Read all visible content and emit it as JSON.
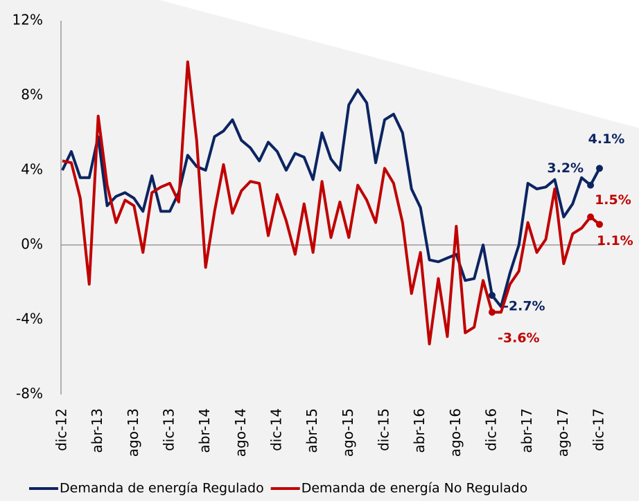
{
  "chart_data": {
    "type": "line",
    "categories": [
      "dic-12",
      null,
      null,
      null,
      "abr-13",
      null,
      null,
      null,
      "ago-13",
      null,
      null,
      null,
      "dic-13",
      null,
      null,
      null,
      "abr-14",
      null,
      null,
      null,
      "ago-14",
      null,
      null,
      null,
      "dic-14",
      null,
      null,
      null,
      "abr-15",
      null,
      null,
      null,
      "ago-15",
      null,
      null,
      null,
      "dic-15",
      null,
      null,
      null,
      "abr-16",
      null,
      null,
      null,
      "ago-16",
      null,
      null,
      null,
      "dic-16",
      null,
      null,
      null,
      "abr-17",
      null,
      null,
      null,
      "ago-17",
      null,
      null,
      null,
      "dic-17"
    ],
    "series": [
      {
        "name": "Demanda de energía Regulado",
        "color": "#0c2461",
        "values": [
          4.0,
          5.0,
          3.6,
          3.6,
          5.8,
          2.1,
          2.6,
          2.8,
          2.5,
          1.8,
          3.7,
          1.8,
          1.8,
          2.8,
          4.8,
          4.2,
          4.0,
          5.8,
          6.1,
          6.7,
          5.6,
          5.2,
          4.5,
          5.5,
          5.0,
          4.0,
          4.9,
          4.7,
          3.5,
          6.0,
          4.6,
          4.0,
          7.5,
          8.3,
          7.6,
          4.4,
          6.7,
          7.0,
          6.0,
          3.0,
          2.0,
          -0.8,
          -0.9,
          -0.7,
          -0.5,
          -1.9,
          -1.8,
          0.0,
          -2.7,
          -3.3,
          -1.5,
          0.0,
          3.3,
          3.0,
          3.1,
          3.5,
          1.5,
          2.2,
          3.6,
          3.2,
          4.1
        ],
        "value_labels": [
          null,
          null,
          null,
          null,
          null,
          null,
          null,
          null,
          null,
          null,
          null,
          null,
          null,
          null,
          null,
          null,
          null,
          null,
          null,
          null,
          null,
          null,
          null,
          null,
          null,
          null,
          null,
          null,
          null,
          null,
          null,
          null,
          null,
          null,
          null,
          null,
          null,
          null,
          null,
          null,
          null,
          null,
          null,
          null,
          null,
          null,
          null,
          null,
          "-2.7%",
          null,
          null,
          null,
          null,
          null,
          null,
          null,
          null,
          null,
          null,
          "3.2%",
          "4.1%"
        ]
      },
      {
        "name": "Demanda de energía No Regulado",
        "color": "#c00000",
        "values": [
          4.5,
          4.4,
          2.5,
          -2.1,
          6.9,
          3.2,
          1.2,
          2.4,
          2.1,
          -0.4,
          2.8,
          3.1,
          3.3,
          2.3,
          9.8,
          5.6,
          -1.2,
          1.8,
          4.3,
          1.7,
          2.9,
          3.4,
          3.3,
          0.5,
          2.7,
          1.3,
          -0.5,
          2.2,
          -0.4,
          3.4,
          0.4,
          2.3,
          0.4,
          3.2,
          2.4,
          1.2,
          4.1,
          3.3,
          1.2,
          -2.6,
          -0.4,
          -5.3,
          -1.8,
          -4.9,
          1.0,
          -4.7,
          -4.4,
          -1.9,
          -3.6,
          -3.6,
          -2.1,
          -1.4,
          1.2,
          -0.4,
          0.3,
          3.0,
          -1.0,
          0.6,
          0.9,
          1.5,
          1.1
        ],
        "value_labels": [
          null,
          null,
          null,
          null,
          null,
          null,
          null,
          null,
          null,
          null,
          null,
          null,
          null,
          null,
          null,
          null,
          null,
          null,
          null,
          null,
          null,
          null,
          null,
          null,
          null,
          null,
          null,
          null,
          null,
          null,
          null,
          null,
          null,
          null,
          null,
          null,
          null,
          null,
          null,
          null,
          null,
          null,
          null,
          null,
          null,
          null,
          null,
          null,
          "-3.6%",
          null,
          null,
          null,
          null,
          null,
          null,
          null,
          null,
          null,
          null,
          "1.5%",
          "1.1%"
        ]
      }
    ],
    "ylim": [
      -8,
      12
    ],
    "yticks": [
      {
        "value": -8,
        "label": "-8%"
      },
      {
        "value": -4,
        "label": "-4%"
      },
      {
        "value": 0,
        "label": "0%"
      },
      {
        "value": 4,
        "label": "4%"
      },
      {
        "value": 8,
        "label": "8%"
      },
      {
        "value": 12,
        "label": "12%"
      }
    ],
    "legend": "bottom"
  }
}
